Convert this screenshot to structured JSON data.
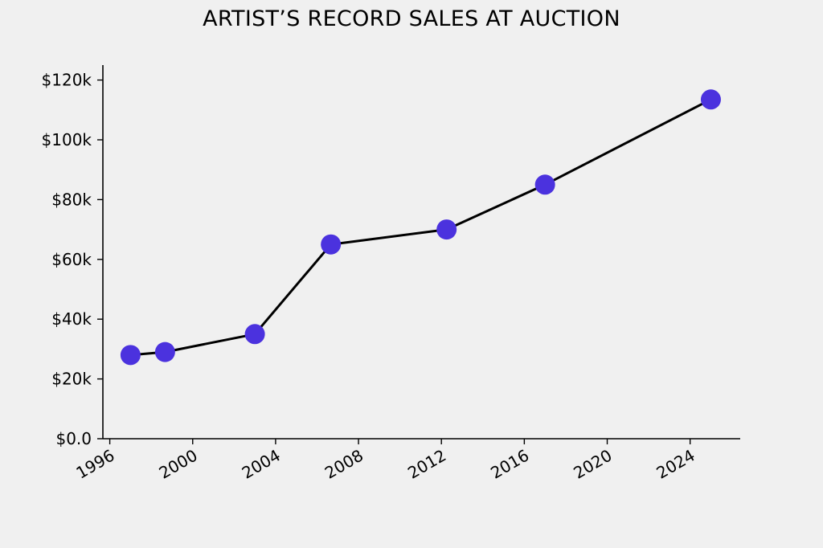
{
  "chart_data": {
    "type": "line",
    "title": "ARTIST’S RECORD SALES AT AUCTION",
    "xlabel": "",
    "ylabel": "",
    "x_axis": {
      "type": "date",
      "range": [
        "1995-09-01",
        "2026-06-01"
      ],
      "ticks": [
        "1996",
        "2000",
        "2004",
        "2008",
        "2012",
        "2016",
        "2020",
        "2024"
      ]
    },
    "y_axis": {
      "range": [
        0,
        125000
      ],
      "ticks": [
        0,
        20000,
        40000,
        60000,
        80000,
        100000,
        120000
      ],
      "tick_labels": [
        "$0.0",
        "$20k",
        "$40k",
        "$60k",
        "$80k",
        "$100k",
        "$120k"
      ]
    },
    "grid": false,
    "legend": "none",
    "series": [
      {
        "x": [
          "1997-01-01",
          "1998-09-01",
          "2003-01-01",
          "2006-09-01",
          "2012-04-01",
          "2017-01-01",
          "2025-01-01"
        ],
        "values": [
          28000,
          29000,
          35000,
          65000,
          70000,
          85000,
          113500
        ]
      }
    ],
    "colors": {
      "line": "#000000",
      "marker": "#4b32de",
      "axis": "#000000",
      "background": "#f0f0f0"
    }
  }
}
